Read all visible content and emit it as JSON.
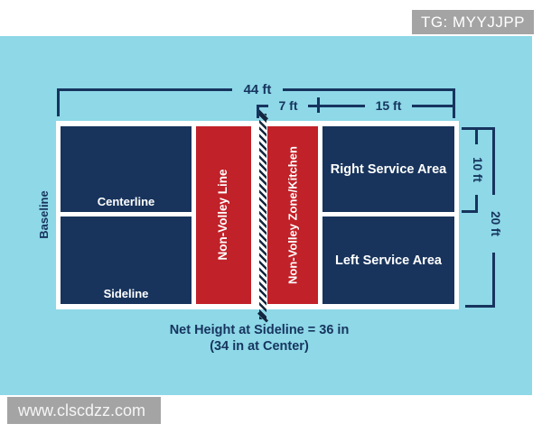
{
  "header_badge": "TG: MYYJJPP",
  "watermark": "www.clscdzz.com",
  "labels": {
    "baseline": "Baseline",
    "centerline": "Centerline",
    "sideline": "Sideline",
    "non_volley_line": "Non-Volley Line",
    "non_volley_zone": "Non-Volley Zone/Kitchen",
    "right_service": "Right Service Area",
    "left_service": "Left Service Area"
  },
  "dimensions": {
    "total_width": "44 ft",
    "kitchen_width": "7 ft",
    "service_length": "15 ft",
    "service_width": "10 ft",
    "court_width": "20 ft"
  },
  "caption": {
    "line1": "Net Height at Sideline = 36 in",
    "line2": "(34 in at Center)"
  },
  "colors": {
    "background": "#8ed8e7",
    "court_navy": "#18345c",
    "kitchen_red": "#c12128",
    "line_navy": "#16345e",
    "net_dark": "#14263e",
    "badge_gray": "#a4a4a4",
    "court_lines": "#ffffff"
  }
}
